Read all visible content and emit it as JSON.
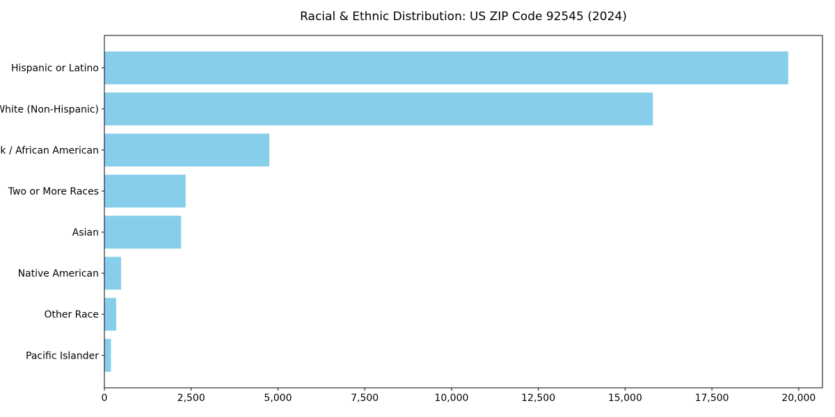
{
  "chart_data": {
    "type": "bar",
    "orientation": "horizontal",
    "title": "Racial & Ethnic Distribution: US ZIP Code 92545 (2024)",
    "xlabel": "",
    "ylabel": "",
    "categories": [
      "Hispanic or Latino",
      "White (Non-Hispanic)",
      "Black / African American",
      "Two or More Races",
      "Asian",
      "Native American",
      "Other Race",
      "Pacific Islander"
    ],
    "values": [
      19700,
      15800,
      4750,
      2340,
      2210,
      480,
      340,
      190
    ],
    "xlim": [
      0,
      20000
    ],
    "xticks": [
      0,
      2500,
      5000,
      7500,
      10000,
      12500,
      15000,
      17500,
      20000
    ],
    "xtick_labels": [
      "0",
      "2,500",
      "5,000",
      "7,500",
      "10,000",
      "12,500",
      "15,000",
      "17,500",
      "20,000"
    ],
    "grid": false,
    "legend": null,
    "bar_color": "#87CEEB"
  },
  "colors": {
    "bar": "#87CEEB",
    "spine": "#000000",
    "text": "#000000",
    "background": "#ffffff"
  }
}
